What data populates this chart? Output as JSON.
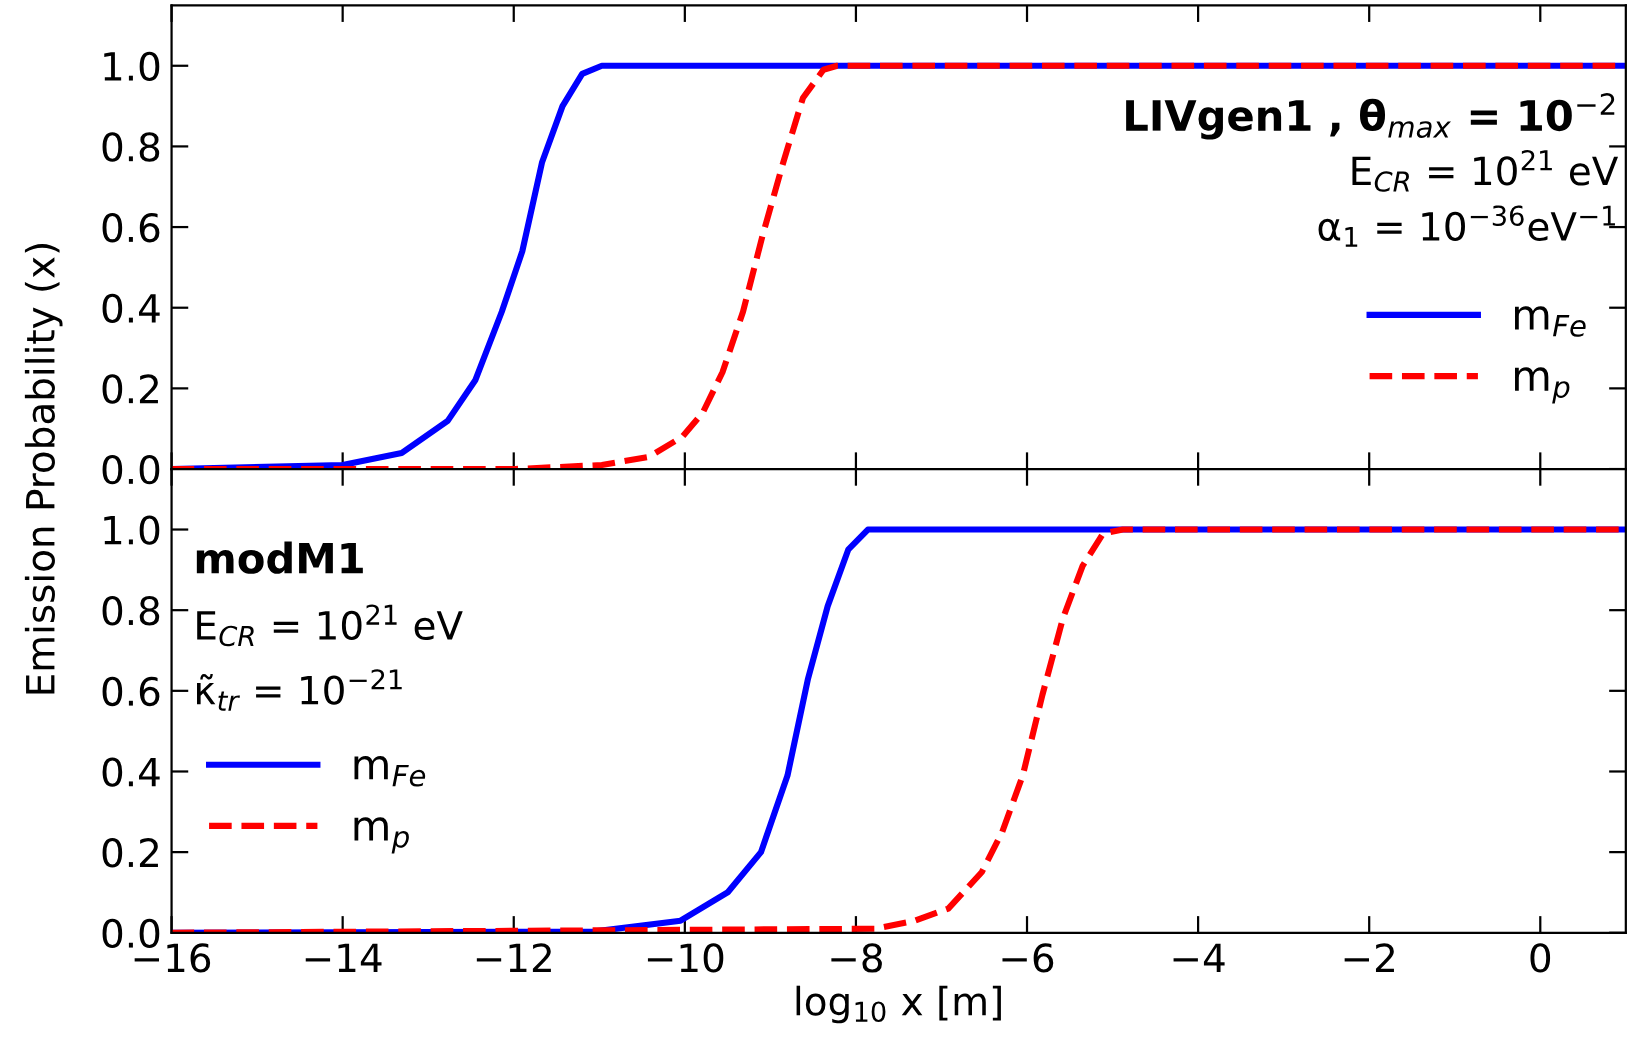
{
  "chart_data": [
    {
      "type": "line",
      "annotations": [
        "LIVgen1 , θ$_{max}$ = 10$^{−2}$",
        "E$_{CR}$ = 10$^{21}$ eV",
        "α$_{1}$ = 10$^{−36}$eV$^{−1}$"
      ],
      "ylabel": "Emission Probability (x)",
      "xlim": [
        -16,
        1
      ],
      "ylim": [
        0,
        1.15
      ],
      "yticks": [
        {
          "value": 0,
          "label": "0.0"
        },
        {
          "value": 0.2,
          "label": "0.2"
        },
        {
          "value": 0.4,
          "label": "0.4"
        },
        {
          "value": 0.6,
          "label": "0.6"
        },
        {
          "value": 0.8,
          "label": "0.8"
        },
        {
          "value": 1.0,
          "label": "1.0"
        }
      ],
      "xticks": [
        -16,
        -14,
        -12,
        -10,
        -8,
        -6,
        -4,
        -2,
        0
      ],
      "tick_labels": "y",
      "legend": "right",
      "grid": false,
      "series": [
        {
          "name": "m$_{Fe}$",
          "color": "#0000ff",
          "line_style": "solid",
          "x": [
            -16,
            -14.0,
            -13.31,
            -12.77,
            -12.45,
            -12.14,
            -11.9,
            -11.67,
            -11.43,
            -11.2,
            -10.97,
            1
          ],
          "values": [
            0,
            0.01,
            0.04,
            0.12,
            0.22,
            0.39,
            0.54,
            0.76,
            0.9,
            0.98,
            1.0,
            1.0
          ]
        },
        {
          "name": "m$_{p}$",
          "color": "#ff0000",
          "line_style": "dashed",
          "x": [
            -16,
            -11.98,
            -10.97,
            -10.42,
            -10.03,
            -9.79,
            -9.56,
            -9.32,
            -9.09,
            -8.85,
            -8.62,
            -8.38,
            -8.22,
            1
          ],
          "values": [
            0,
            0,
            0.01,
            0.03,
            0.08,
            0.14,
            0.24,
            0.39,
            0.58,
            0.76,
            0.92,
            0.99,
            1.0,
            1.0
          ]
        }
      ]
    },
    {
      "type": "line",
      "annotations": [
        "modM1",
        "E$_{CR}$ = 10$^{21}$ eV",
        "κ̃$_{tr}$ = 10$^{−21}$"
      ],
      "xlabel": "log$_{10}$ x [m]",
      "xlim": [
        -16,
        1
      ],
      "ylim": [
        0,
        1.15
      ],
      "yticks": [
        {
          "value": 0,
          "label": "0.0"
        },
        {
          "value": 0.2,
          "label": "0.2"
        },
        {
          "value": 0.4,
          "label": "0.4"
        },
        {
          "value": 0.6,
          "label": "0.6"
        },
        {
          "value": 0.8,
          "label": "0.8"
        },
        {
          "value": 1.0,
          "label": "1.0"
        }
      ],
      "xticks": [
        {
          "value": -16,
          "label": "−16"
        },
        {
          "value": -14,
          "label": "−14"
        },
        {
          "value": -12,
          "label": "−12"
        },
        {
          "value": -10,
          "label": "−10"
        },
        {
          "value": -8,
          "label": "−8"
        },
        {
          "value": -6,
          "label": "−6"
        },
        {
          "value": -4,
          "label": "−4"
        },
        {
          "value": -2,
          "label": "−2"
        },
        0
      ],
      "legend": "left",
      "grid": false,
      "series": [
        {
          "name": "m$_{Fe}$",
          "color": "#0000ff",
          "line_style": "solid",
          "x": [
            -16,
            -11.07,
            -10.05,
            -9.5,
            -9.11,
            -8.8,
            -8.56,
            -8.33,
            -8.09,
            -7.86,
            1
          ],
          "values": [
            0,
            0.003,
            0.03,
            0.1,
            0.2,
            0.39,
            0.63,
            0.81,
            0.95,
            1.0,
            1.0
          ]
        },
        {
          "name": "m$_{p}$",
          "color": "#ff0000",
          "line_style": "dashed",
          "x": [
            -16,
            -7.78,
            -7.31,
            -6.92,
            -6.53,
            -6.29,
            -6.05,
            -5.82,
            -5.58,
            -5.35,
            -5.11,
            -4.88,
            1
          ],
          "values": [
            0,
            0.01,
            0.03,
            0.06,
            0.15,
            0.25,
            0.39,
            0.59,
            0.78,
            0.91,
            0.99,
            1.0,
            1.0
          ]
        }
      ]
    }
  ]
}
